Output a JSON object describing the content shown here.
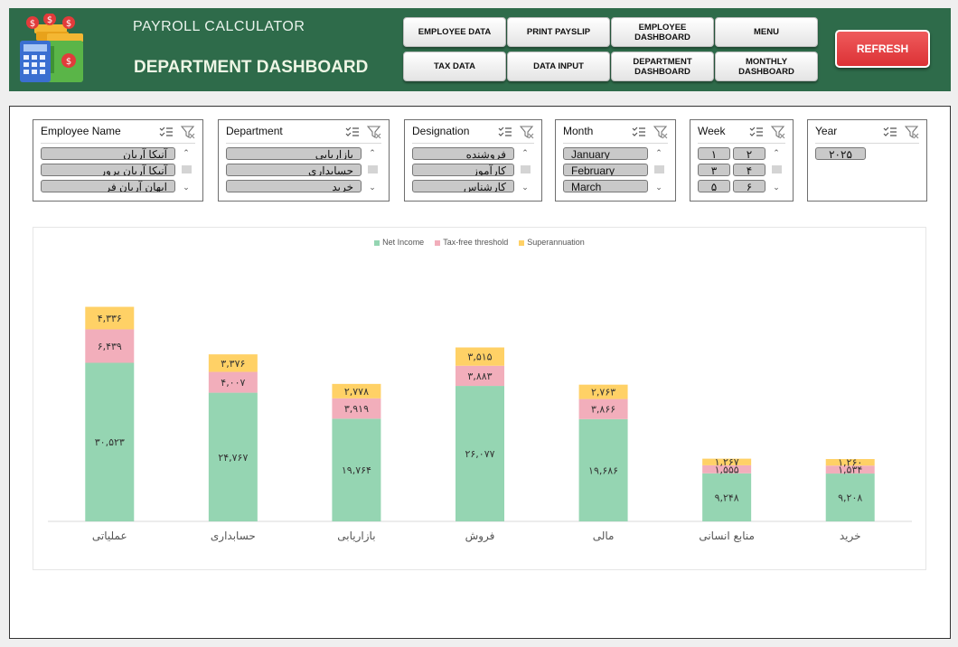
{
  "header": {
    "app_title": "PAYROLL CALCULATOR",
    "page_title": "DEPARTMENT DASHBOARD",
    "nav_buttons": [
      {
        "label": "EMPLOYEE DATA"
      },
      {
        "label": "PRINT PAYSLIP"
      },
      {
        "label": "EMPLOYEE DASHBOARD"
      },
      {
        "label": "MENU"
      },
      {
        "label": "TAX DATA"
      },
      {
        "label": "DATA INPUT"
      },
      {
        "label": "DEPARTMENT DASHBOARD"
      },
      {
        "label": "MONTHLY DASHBOARD"
      }
    ],
    "refresh_label": "REFRESH"
  },
  "slicers": {
    "employee": {
      "title": "Employee Name",
      "items": [
        "آنیکا آریان",
        "آنیکا آریان پرور",
        "ایهان آریان فر"
      ]
    },
    "department": {
      "title": "Department",
      "items": [
        "بازاریابی",
        "حسابداری",
        "خرید"
      ]
    },
    "designation": {
      "title": "Designation",
      "items": [
        "فروشنده",
        "کارآموز",
        "کارشناس"
      ]
    },
    "month": {
      "title": "Month",
      "items": [
        "January",
        "February",
        "March"
      ]
    },
    "week": {
      "title": "Week",
      "items": [
        "۱",
        "۲",
        "۳",
        "۴",
        "۵",
        "۶"
      ]
    },
    "year": {
      "title": "Year",
      "items": [
        "۲۰۲۵"
      ]
    }
  },
  "chart_data": {
    "type": "bar",
    "stacked": true,
    "categories": [
      "عملیاتی",
      "حسابداری",
      "بازاریابی",
      "فروش",
      "مالی",
      "منابع انسانی",
      "خرید"
    ],
    "series": [
      {
        "name": "Net Income",
        "color": "#95d5b2",
        "values": [
          30523,
          24767,
          19764,
          26077,
          19686,
          9248,
          9208
        ],
        "labels": [
          "۳۰,۵۲۳",
          "۲۴,۷۶۷",
          "۱۹,۷۶۴",
          "۲۶,۰۷۷",
          "۱۹,۶۸۶",
          "۹,۲۴۸",
          "۹,۲۰۸"
        ]
      },
      {
        "name": "Tax-free threshold",
        "color": "#f2aebb",
        "values": [
          6439,
          4007,
          3919,
          3883,
          3866,
          1555,
          1534
        ],
        "labels": [
          "۶,۴۳۹",
          "۴,۰۰۷",
          "۳,۹۱۹",
          "۳,۸۸۳",
          "۳,۸۶۶",
          "۱,۵۵۵",
          "۱,۵۳۴"
        ]
      },
      {
        "name": "Superannuation",
        "color": "#ffd166",
        "values": [
          4336,
          3376,
          2778,
          3515,
          2763,
          1267,
          1260
        ],
        "labels": [
          "۴,۳۳۶",
          "۳,۳۷۶",
          "۲,۷۷۸",
          "۳,۵۱۵",
          "۲,۷۶۳",
          "۱,۲۶۷",
          "۱,۲۶۰"
        ]
      }
    ],
    "legend_position": "top",
    "grid": false,
    "ylim": [
      0,
      48000
    ]
  },
  "colors": {
    "header_bg": "#2e6b4a",
    "refresh": "#e03a3e"
  }
}
